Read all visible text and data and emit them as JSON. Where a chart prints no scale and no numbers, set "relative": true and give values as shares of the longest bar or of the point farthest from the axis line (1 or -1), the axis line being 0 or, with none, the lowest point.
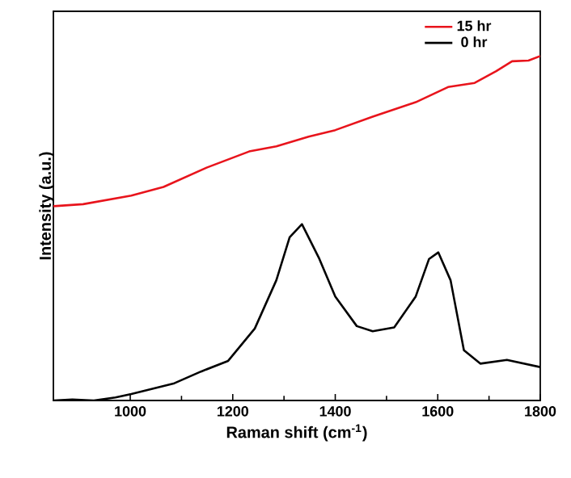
{
  "chart_data": {
    "type": "line",
    "xlabel": "Raman shift (cm$^{-1}$)",
    "ylabel": "Intensity (a.u.)",
    "relative": true,
    "xlim": [
      850,
      1800
    ],
    "xticks": [
      1000,
      1200,
      1400,
      1600,
      1800
    ],
    "legend": "top right",
    "grid": false,
    "series": [
      {
        "name": "15 hr",
        "color": "#e8141c",
        "x": [
          850,
          908,
          1002,
          1065,
          1149,
          1232,
          1285,
          1348,
          1400,
          1473,
          1557,
          1620,
          1672,
          1714,
          1745,
          1777,
          1800
        ],
        "values": [
          0.564,
          0.57,
          0.595,
          0.62,
          0.676,
          0.723,
          0.738,
          0.766,
          0.785,
          0.824,
          0.866,
          0.91,
          0.922,
          0.956,
          0.985,
          0.987,
          1.0
        ]
      },
      {
        "name": "0 hr",
        "color": "#000000",
        "x": [
          850,
          887,
          929,
          971,
          1002,
          1086,
          1138,
          1191,
          1243,
          1285,
          1311,
          1335,
          1369,
          1400,
          1442,
          1473,
          1515,
          1557,
          1583,
          1601,
          1625,
          1651,
          1683,
          1735,
          1800
        ],
        "values": [
          0.0,
          0.003,
          0.0,
          0.009,
          0.019,
          0.05,
          0.084,
          0.115,
          0.209,
          0.349,
          0.474,
          0.512,
          0.411,
          0.302,
          0.216,
          0.201,
          0.212,
          0.302,
          0.411,
          0.43,
          0.349,
          0.146,
          0.107,
          0.118,
          0.097
        ]
      }
    ]
  }
}
